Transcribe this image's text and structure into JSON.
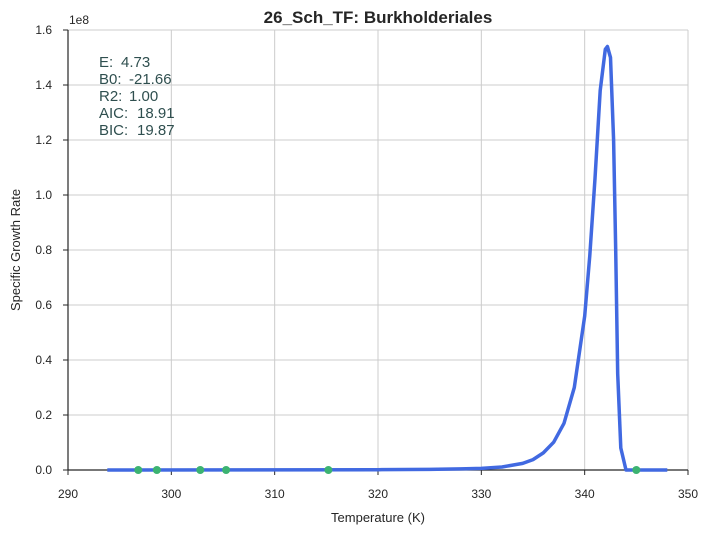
{
  "chart_data": {
    "type": "line",
    "title": "26_Sch_TF: Burkholderiales",
    "xlabel": "Temperature (K)",
    "ylabel": "Specific Growth Rate",
    "y_offset_label": "1e8",
    "xlim": [
      290,
      350
    ],
    "ylim": [
      0,
      1.6
    ],
    "y_scale_factor": 100000000,
    "x_ticks": [
      "290",
      "300",
      "310",
      "320",
      "330",
      "340",
      "350"
    ],
    "y_ticks": [
      "0.0",
      "0.2",
      "0.4",
      "0.6",
      "0.8",
      "1.0",
      "1.2",
      "1.4",
      "1.6"
    ],
    "grid": true,
    "stats": [
      {
        "label": "E:",
        "value": "4.73"
      },
      {
        "label": "B0:",
        "value": "-21.66"
      },
      {
        "label": "R2:",
        "value": "1.00"
      },
      {
        "label": "AIC:",
        "value": "18.91"
      },
      {
        "label": "BIC:",
        "value": "19.87"
      }
    ],
    "series": [
      {
        "type": "line",
        "color": "#4169e1",
        "x": [
          293.8,
          320,
          325,
          328,
          330,
          332,
          334,
          335,
          336,
          337,
          338,
          339,
          340,
          340.5,
          341,
          341.5,
          342,
          342.2,
          342.5,
          342.8,
          343,
          343.2,
          343.5,
          344,
          348
        ],
        "y": [
          0,
          0.001,
          0.002,
          0.004,
          0.006,
          0.011,
          0.024,
          0.038,
          0.062,
          0.101,
          0.17,
          0.3,
          0.56,
          0.78,
          1.06,
          1.38,
          1.53,
          1.54,
          1.5,
          1.2,
          0.8,
          0.35,
          0.08,
          0.0,
          0
        ]
      },
      {
        "type": "scatter",
        "color": "#3cb371",
        "x": [
          296.8,
          298.6,
          302.8,
          305.3,
          315.2,
          345.0
        ],
        "y": [
          0,
          0,
          0,
          0,
          0,
          0
        ]
      }
    ]
  }
}
